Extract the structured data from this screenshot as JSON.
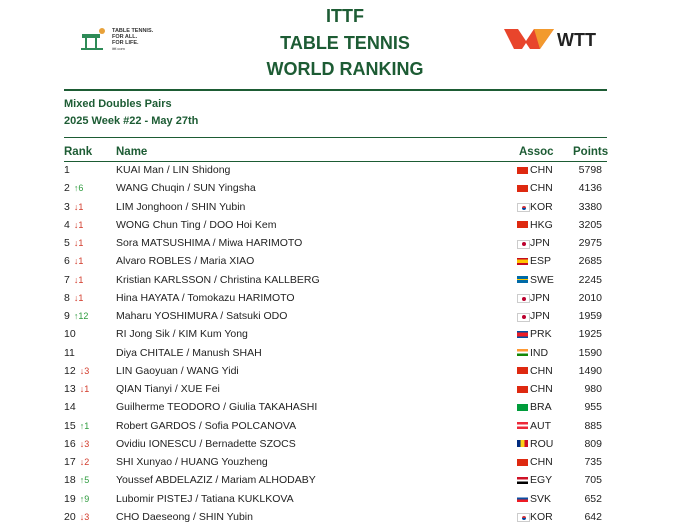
{
  "header": {
    "title_lines": [
      "ITTF",
      "TABLE TENNIS",
      "WORLD RANKING"
    ],
    "ittf_logo": [
      "TABLE TENNIS.",
      "FOR ALL.",
      "FOR LIFE.",
      "ittf.com"
    ],
    "wtt_logo": "WTT"
  },
  "subtitle": {
    "category": "Mixed Doubles Pairs",
    "week": "2025 Week #22 - May 27th"
  },
  "table": {
    "columns": [
      "Rank",
      "Name",
      "Assoc",
      "Points"
    ],
    "rows": [
      {
        "rank": 1,
        "name": "KUAI Man / LIN Shidong",
        "assoc": "CHN",
        "points": 5798
      },
      {
        "rank": 2,
        "change": "↑6",
        "name": "WANG Chuqin / SUN Yingsha",
        "assoc": "CHN",
        "points": 4136
      },
      {
        "rank": 3,
        "change": "↓1",
        "name": "LIM Jonghoon / SHIN Yubin",
        "assoc": "KOR",
        "points": 3380
      },
      {
        "rank": 4,
        "change": "↓1",
        "name": "WONG Chun Ting / DOO Hoi Kem",
        "assoc": "HKG",
        "points": 3205
      },
      {
        "rank": 5,
        "change": "↓1",
        "name": "Sora MATSUSHIMA / Miwa HARIMOTO",
        "assoc": "JPN",
        "points": 2975
      },
      {
        "rank": 6,
        "change": "↓1",
        "name": "Alvaro ROBLES / Maria XIAO",
        "assoc": "ESP",
        "points": 2685
      },
      {
        "rank": 7,
        "change": "↓1",
        "name": "Kristian KARLSSON / Christina KALLBERG",
        "assoc": "SWE",
        "points": 2245
      },
      {
        "rank": 8,
        "change": "↓1",
        "name": "Hina HAYATA / Tomokazu HARIMOTO",
        "assoc": "JPN",
        "points": 2010
      },
      {
        "rank": 9,
        "change": "↑12",
        "name": "Maharu YOSHIMURA / Satsuki ODO",
        "assoc": "JPN",
        "points": 1959
      },
      {
        "rank": 10,
        "name": "RI Jong Sik / KIM Kum Yong",
        "assoc": "PRK",
        "points": 1925
      },
      {
        "rank": 11,
        "name": "Diya CHITALE / Manush SHAH",
        "assoc": "IND",
        "points": 1590
      },
      {
        "rank": 12,
        "change": "↓3",
        "name": "LIN Gaoyuan / WANG Yidi",
        "assoc": "CHN",
        "points": 1490
      },
      {
        "rank": 13,
        "change": "↓1",
        "name": "QIAN Tianyi / XUE Fei",
        "assoc": "CHN",
        "points": 980
      },
      {
        "rank": 14,
        "name": "Guilherme TEODORO / Giulia TAKAHASHI",
        "assoc": "BRA",
        "points": 955
      },
      {
        "rank": 15,
        "change": "↑1",
        "name": "Robert GARDOS / Sofia POLCANOVA",
        "assoc": "AUT",
        "points": 885
      },
      {
        "rank": 16,
        "change": "↓3",
        "name": "Ovidiu IONESCU / Bernadette SZOCS",
        "assoc": "ROU",
        "points": 809
      },
      {
        "rank": 17,
        "change": "↓2",
        "name": "SHI Xunyao / HUANG Youzheng",
        "assoc": "CHN",
        "points": 735
      },
      {
        "rank": 18,
        "change": "↑5",
        "name": "Youssef ABDELAZIZ / Mariam ALHODABY",
        "assoc": "EGY",
        "points": 705
      },
      {
        "rank": 19,
        "change": "↑9",
        "name": "Lubomir PISTEJ / Tatiana KUKLKOVA",
        "assoc": "SVK",
        "points": 652
      },
      {
        "rank": 20,
        "change": "↓3",
        "name": "CHO Daeseong / SHIN Yubin",
        "assoc": "KOR",
        "points": 642
      }
    ]
  }
}
